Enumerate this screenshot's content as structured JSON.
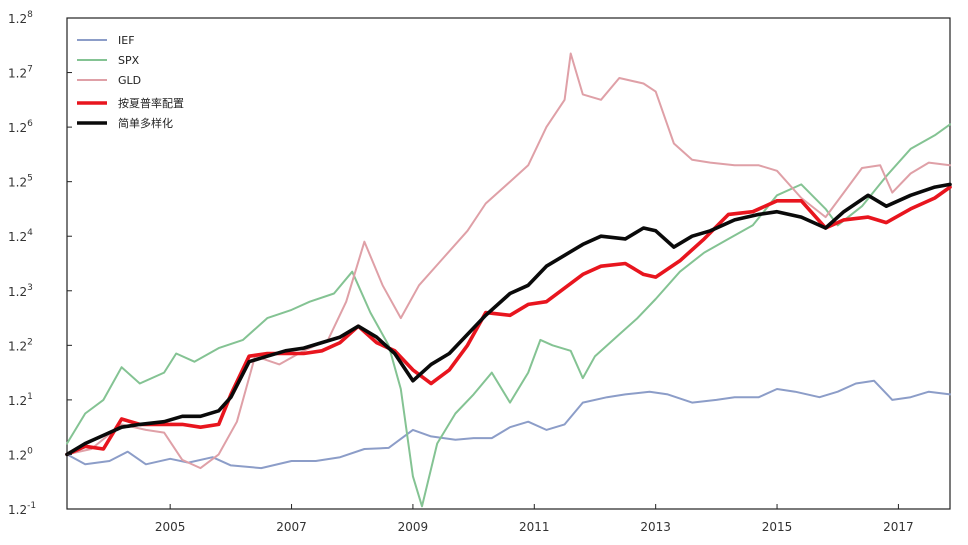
{
  "chart_data": {
    "type": "line",
    "title": "",
    "xlabel": "",
    "ylabel": "",
    "y_scale": "log base 1.2",
    "xlim": [
      2003.3,
      2017.85
    ],
    "ylim_exponent": [
      -1,
      8
    ],
    "grid": false,
    "legend_position": "top-left",
    "x_ticks": [
      2005,
      2007,
      2009,
      2011,
      2013,
      2015,
      2017
    ],
    "x_tick_labels": [
      "2005",
      "2007",
      "2009",
      "2011",
      "2013",
      "2015",
      "2017"
    ],
    "y_ticks_exponent": [
      -1,
      0,
      1,
      2,
      3,
      4,
      5,
      6,
      7,
      8
    ],
    "y_tick_labels": [
      {
        "base": "1.2",
        "exp": "-1"
      },
      {
        "base": "1.2",
        "exp": "0"
      },
      {
        "base": "1.2",
        "exp": "1"
      },
      {
        "base": "1.2",
        "exp": "2"
      },
      {
        "base": "1.2",
        "exp": "3"
      },
      {
        "base": "1.2",
        "exp": "4"
      },
      {
        "base": "1.2",
        "exp": "5"
      },
      {
        "base": "1.2",
        "exp": "6"
      },
      {
        "base": "1.2",
        "exp": "7"
      },
      {
        "base": "1.2",
        "exp": "8"
      }
    ],
    "series": [
      {
        "name": "IEF",
        "color": "#8c9dc8",
        "width": 2,
        "points": [
          [
            2003.3,
            0.0
          ],
          [
            2003.6,
            -0.18
          ],
          [
            2004.0,
            -0.12
          ],
          [
            2004.3,
            0.05
          ],
          [
            2004.6,
            -0.18
          ],
          [
            2005.0,
            -0.08
          ],
          [
            2005.3,
            -0.15
          ],
          [
            2005.7,
            -0.05
          ],
          [
            2006.0,
            -0.2
          ],
          [
            2006.5,
            -0.25
          ],
          [
            2007.0,
            -0.12
          ],
          [
            2007.4,
            -0.12
          ],
          [
            2007.8,
            -0.05
          ],
          [
            2008.2,
            0.1
          ],
          [
            2008.6,
            0.12
          ],
          [
            2009.0,
            0.45
          ],
          [
            2009.3,
            0.33
          ],
          [
            2009.7,
            0.27
          ],
          [
            2010.0,
            0.3
          ],
          [
            2010.3,
            0.3
          ],
          [
            2010.6,
            0.5
          ],
          [
            2010.9,
            0.6
          ],
          [
            2011.2,
            0.45
          ],
          [
            2011.5,
            0.55
          ],
          [
            2011.8,
            0.95
          ],
          [
            2012.2,
            1.05
          ],
          [
            2012.5,
            1.1
          ],
          [
            2012.9,
            1.15
          ],
          [
            2013.2,
            1.1
          ],
          [
            2013.6,
            0.95
          ],
          [
            2014.0,
            1.0
          ],
          [
            2014.3,
            1.05
          ],
          [
            2014.7,
            1.05
          ],
          [
            2015.0,
            1.2
          ],
          [
            2015.3,
            1.15
          ],
          [
            2015.7,
            1.05
          ],
          [
            2016.0,
            1.15
          ],
          [
            2016.3,
            1.3
          ],
          [
            2016.6,
            1.35
          ],
          [
            2016.9,
            1.0
          ],
          [
            2017.2,
            1.05
          ],
          [
            2017.5,
            1.15
          ],
          [
            2017.85,
            1.1
          ]
        ]
      },
      {
        "name": "SPX",
        "color": "#84c393",
        "width": 2,
        "points": [
          [
            2003.3,
            0.2
          ],
          [
            2003.6,
            0.75
          ],
          [
            2003.9,
            1.0
          ],
          [
            2004.2,
            1.6
          ],
          [
            2004.5,
            1.3
          ],
          [
            2004.9,
            1.5
          ],
          [
            2005.1,
            1.85
          ],
          [
            2005.4,
            1.7
          ],
          [
            2005.8,
            1.95
          ],
          [
            2006.2,
            2.1
          ],
          [
            2006.6,
            2.5
          ],
          [
            2007.0,
            2.65
          ],
          [
            2007.3,
            2.8
          ],
          [
            2007.7,
            2.95
          ],
          [
            2008.0,
            3.35
          ],
          [
            2008.3,
            2.6
          ],
          [
            2008.6,
            2.0
          ],
          [
            2008.8,
            1.2
          ],
          [
            2009.0,
            -0.4
          ],
          [
            2009.15,
            -0.95
          ],
          [
            2009.4,
            0.2
          ],
          [
            2009.7,
            0.75
          ],
          [
            2010.0,
            1.1
          ],
          [
            2010.3,
            1.5
          ],
          [
            2010.6,
            0.95
          ],
          [
            2010.9,
            1.5
          ],
          [
            2011.1,
            2.1
          ],
          [
            2011.3,
            2.0
          ],
          [
            2011.6,
            1.9
          ],
          [
            2011.8,
            1.4
          ],
          [
            2012.0,
            1.8
          ],
          [
            2012.4,
            2.2
          ],
          [
            2012.7,
            2.5
          ],
          [
            2013.0,
            2.85
          ],
          [
            2013.4,
            3.35
          ],
          [
            2013.8,
            3.7
          ],
          [
            2014.2,
            3.95
          ],
          [
            2014.6,
            4.2
          ],
          [
            2015.0,
            4.75
          ],
          [
            2015.4,
            4.95
          ],
          [
            2015.8,
            4.5
          ],
          [
            2016.0,
            4.2
          ],
          [
            2016.4,
            4.55
          ],
          [
            2016.8,
            5.1
          ],
          [
            2017.2,
            5.6
          ],
          [
            2017.6,
            5.85
          ],
          [
            2017.85,
            6.05
          ]
        ]
      },
      {
        "name": "GLD",
        "color": "#dfa0a7",
        "width": 2,
        "points": [
          [
            2003.3,
            0.0
          ],
          [
            2003.7,
            0.1
          ],
          [
            2004.2,
            0.55
          ],
          [
            2004.6,
            0.45
          ],
          [
            2004.9,
            0.4
          ],
          [
            2005.2,
            -0.1
          ],
          [
            2005.5,
            -0.25
          ],
          [
            2005.8,
            0.0
          ],
          [
            2006.1,
            0.6
          ],
          [
            2006.4,
            1.8
          ],
          [
            2006.8,
            1.65
          ],
          [
            2007.2,
            1.9
          ],
          [
            2007.6,
            2.1
          ],
          [
            2007.9,
            2.8
          ],
          [
            2008.2,
            3.9
          ],
          [
            2008.5,
            3.1
          ],
          [
            2008.8,
            2.5
          ],
          [
            2009.1,
            3.1
          ],
          [
            2009.5,
            3.6
          ],
          [
            2009.9,
            4.1
          ],
          [
            2010.2,
            4.6
          ],
          [
            2010.6,
            5.0
          ],
          [
            2010.9,
            5.3
          ],
          [
            2011.2,
            6.0
          ],
          [
            2011.5,
            6.5
          ],
          [
            2011.6,
            7.35
          ],
          [
            2011.8,
            6.6
          ],
          [
            2012.1,
            6.5
          ],
          [
            2012.4,
            6.9
          ],
          [
            2012.8,
            6.8
          ],
          [
            2013.0,
            6.65
          ],
          [
            2013.3,
            5.7
          ],
          [
            2013.6,
            5.4
          ],
          [
            2013.9,
            5.35
          ],
          [
            2014.3,
            5.3
          ],
          [
            2014.7,
            5.3
          ],
          [
            2015.0,
            5.2
          ],
          [
            2015.4,
            4.7
          ],
          [
            2015.8,
            4.35
          ],
          [
            2016.1,
            4.8
          ],
          [
            2016.4,
            5.25
          ],
          [
            2016.7,
            5.3
          ],
          [
            2016.9,
            4.8
          ],
          [
            2017.2,
            5.15
          ],
          [
            2017.5,
            5.35
          ],
          [
            2017.85,
            5.3
          ]
        ]
      },
      {
        "name": "按夏普率配置",
        "color": "#e8151e",
        "width": 3.6,
        "points": [
          [
            2003.3,
            0.0
          ],
          [
            2003.6,
            0.15
          ],
          [
            2003.9,
            0.1
          ],
          [
            2004.2,
            0.65
          ],
          [
            2004.5,
            0.55
          ],
          [
            2004.9,
            0.55
          ],
          [
            2005.2,
            0.55
          ],
          [
            2005.5,
            0.5
          ],
          [
            2005.8,
            0.55
          ],
          [
            2006.0,
            1.1
          ],
          [
            2006.3,
            1.8
          ],
          [
            2006.6,
            1.85
          ],
          [
            2006.9,
            1.85
          ],
          [
            2007.2,
            1.85
          ],
          [
            2007.5,
            1.9
          ],
          [
            2007.8,
            2.05
          ],
          [
            2008.1,
            2.35
          ],
          [
            2008.4,
            2.05
          ],
          [
            2008.7,
            1.9
          ],
          [
            2009.0,
            1.55
          ],
          [
            2009.3,
            1.3
          ],
          [
            2009.6,
            1.55
          ],
          [
            2009.9,
            2.0
          ],
          [
            2010.2,
            2.6
          ],
          [
            2010.6,
            2.55
          ],
          [
            2010.9,
            2.75
          ],
          [
            2011.2,
            2.8
          ],
          [
            2011.5,
            3.05
          ],
          [
            2011.8,
            3.3
          ],
          [
            2012.1,
            3.45
          ],
          [
            2012.5,
            3.5
          ],
          [
            2012.8,
            3.3
          ],
          [
            2013.0,
            3.25
          ],
          [
            2013.4,
            3.55
          ],
          [
            2013.8,
            3.95
          ],
          [
            2014.2,
            4.4
          ],
          [
            2014.6,
            4.45
          ],
          [
            2015.0,
            4.65
          ],
          [
            2015.4,
            4.65
          ],
          [
            2015.8,
            4.15
          ],
          [
            2016.1,
            4.3
          ],
          [
            2016.5,
            4.35
          ],
          [
            2016.8,
            4.25
          ],
          [
            2017.2,
            4.5
          ],
          [
            2017.6,
            4.7
          ],
          [
            2017.85,
            4.9
          ]
        ]
      },
      {
        "name": "简单多样化",
        "color": "#0a0a0a",
        "width": 3.6,
        "points": [
          [
            2003.3,
            0.0
          ],
          [
            2003.6,
            0.2
          ],
          [
            2003.9,
            0.35
          ],
          [
            2004.2,
            0.5
          ],
          [
            2004.5,
            0.55
          ],
          [
            2004.9,
            0.6
          ],
          [
            2005.2,
            0.7
          ],
          [
            2005.5,
            0.7
          ],
          [
            2005.8,
            0.8
          ],
          [
            2006.0,
            1.05
          ],
          [
            2006.3,
            1.7
          ],
          [
            2006.6,
            1.8
          ],
          [
            2006.9,
            1.9
          ],
          [
            2007.2,
            1.95
          ],
          [
            2007.5,
            2.05
          ],
          [
            2007.8,
            2.15
          ],
          [
            2008.1,
            2.35
          ],
          [
            2008.4,
            2.15
          ],
          [
            2008.7,
            1.85
          ],
          [
            2009.0,
            1.35
          ],
          [
            2009.3,
            1.65
          ],
          [
            2009.6,
            1.85
          ],
          [
            2009.9,
            2.2
          ],
          [
            2010.2,
            2.55
          ],
          [
            2010.6,
            2.95
          ],
          [
            2010.9,
            3.1
          ],
          [
            2011.2,
            3.45
          ],
          [
            2011.5,
            3.65
          ],
          [
            2011.8,
            3.85
          ],
          [
            2012.1,
            4.0
          ],
          [
            2012.5,
            3.95
          ],
          [
            2012.8,
            4.15
          ],
          [
            2013.0,
            4.1
          ],
          [
            2013.3,
            3.8
          ],
          [
            2013.6,
            4.0
          ],
          [
            2013.9,
            4.1
          ],
          [
            2014.3,
            4.3
          ],
          [
            2014.7,
            4.4
          ],
          [
            2015.0,
            4.45
          ],
          [
            2015.4,
            4.35
          ],
          [
            2015.8,
            4.15
          ],
          [
            2016.1,
            4.45
          ],
          [
            2016.5,
            4.75
          ],
          [
            2016.8,
            4.55
          ],
          [
            2017.2,
            4.75
          ],
          [
            2017.6,
            4.9
          ],
          [
            2017.85,
            4.95
          ]
        ]
      }
    ]
  }
}
